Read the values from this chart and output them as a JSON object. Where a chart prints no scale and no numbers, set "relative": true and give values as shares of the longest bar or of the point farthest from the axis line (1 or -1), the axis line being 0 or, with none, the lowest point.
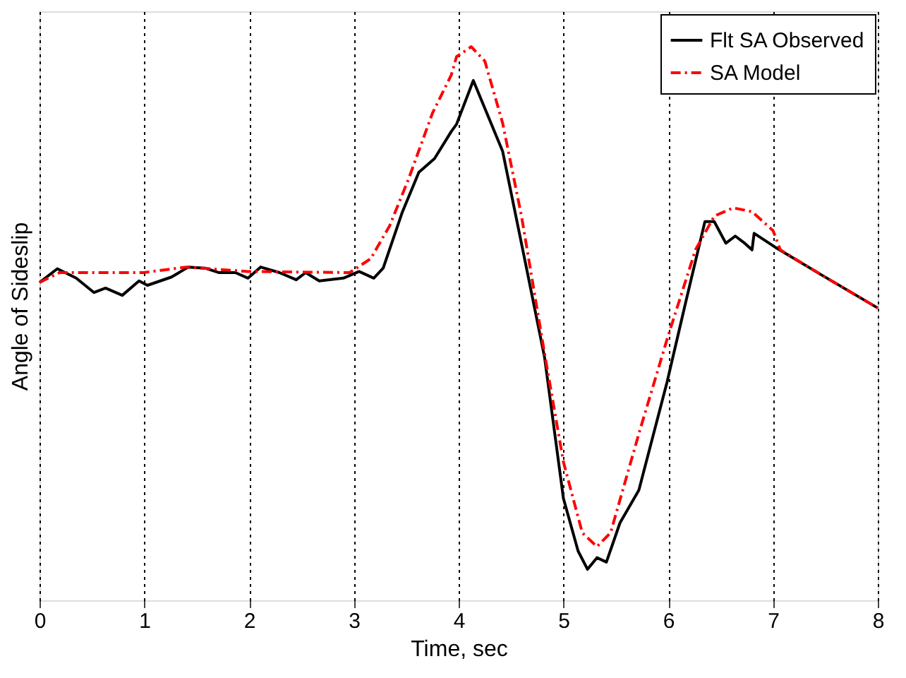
{
  "chart_data": {
    "type": "line",
    "xlabel": "Time, sec",
    "ylabel": "Angle of Sideslip",
    "relative": true,
    "xlim": [
      0,
      8
    ],
    "xticks": [
      0,
      1,
      2,
      3,
      4,
      5,
      6,
      7,
      8
    ],
    "grid": "x",
    "legend": "top right",
    "tick_labels": "x",
    "series": [
      {
        "name": "Flt SA Observed",
        "color": "#000000",
        "line_style": "solid",
        "x": [
          0,
          0.17,
          0.35,
          0.52,
          0.63,
          0.79,
          0.95,
          1.03,
          1.26,
          1.42,
          1.58,
          1.71,
          1.87,
          1.99,
          2.11,
          2.29,
          2.45,
          2.54,
          2.67,
          2.9,
          3.05,
          3.19,
          3.28,
          3.46,
          3.62,
          3.77,
          3.93,
          3.98,
          4.14,
          4.42,
          4.64,
          4.82,
          5.0,
          5.14,
          5.23,
          5.32,
          5.41,
          5.54,
          5.72,
          5.99,
          6.17,
          6.35,
          6.44,
          6.55,
          6.64,
          6.73,
          6.8,
          6.82,
          7.02,
          7.47,
          8.0
        ],
        "values": [
          0.574,
          0.599,
          0.582,
          0.556,
          0.564,
          0.551,
          0.577,
          0.569,
          0.584,
          0.602,
          0.6,
          0.592,
          0.592,
          0.582,
          0.602,
          0.592,
          0.579,
          0.592,
          0.577,
          0.582,
          0.594,
          0.582,
          0.6,
          0.7,
          0.773,
          0.798,
          0.847,
          0.86,
          0.939,
          0.811,
          0.607,
          0.439,
          0.184,
          0.089,
          0.056,
          0.077,
          0.069,
          0.14,
          0.199,
          0.395,
          0.541,
          0.684,
          0.684,
          0.645,
          0.658,
          0.645,
          0.633,
          0.663,
          0.638,
          0.587,
          0.528
        ]
      },
      {
        "name": "SA Model",
        "color": "#ff0000",
        "line_style": "dashdot",
        "x": [
          0,
          0.19,
          0.99,
          1.4,
          1.99,
          2.96,
          3.16,
          3.34,
          3.52,
          3.75,
          3.93,
          3.98,
          4.12,
          4.25,
          4.42,
          4.6,
          4.82,
          5.0,
          5.18,
          5.32,
          5.45,
          5.72,
          5.99,
          6.26,
          6.44,
          6.62,
          6.8,
          7.0,
          7.07,
          7.47,
          8.0
        ],
        "values": [
          0.574,
          0.592,
          0.592,
          0.602,
          0.594,
          0.592,
          0.617,
          0.676,
          0.76,
          0.88,
          0.949,
          0.982,
          1.0,
          0.974,
          0.862,
          0.694,
          0.446,
          0.25,
          0.122,
          0.097,
          0.122,
          0.301,
          0.472,
          0.633,
          0.694,
          0.709,
          0.702,
          0.668,
          0.633,
          0.587,
          0.528
        ]
      }
    ]
  }
}
